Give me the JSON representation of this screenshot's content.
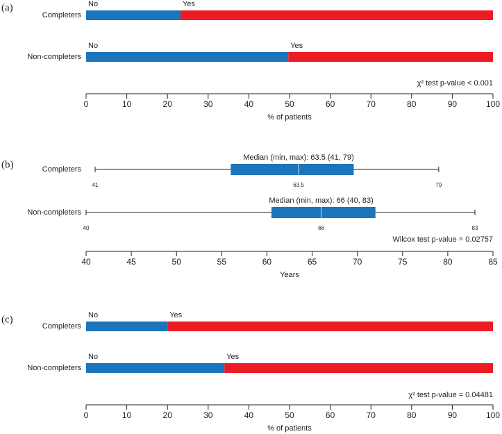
{
  "chart_data": [
    {
      "type": "stacked_barh",
      "panel_label": "(a)",
      "categories": [
        "Completers",
        "Non-completers"
      ],
      "series": [
        {
          "name": "No",
          "color": "#1b75bc",
          "values": [
            23.2,
            49.7
          ]
        },
        {
          "name": "Yes",
          "color": "#ed1c24",
          "values": [
            76.8,
            50.3
          ]
        }
      ],
      "xlabel": "% of patients",
      "xlim": [
        0,
        100
      ],
      "xticks": [
        0,
        10,
        20,
        30,
        40,
        50,
        60,
        70,
        80,
        90,
        100
      ],
      "annotation": "χ² test p-value < 0.001"
    },
    {
      "type": "boxplot",
      "panel_label": "(b)",
      "categories": [
        "Completers",
        "Non-completers"
      ],
      "color": "#1b75bc",
      "min": [
        41,
        40
      ],
      "q1": [
        56,
        60.5
      ],
      "median": [
        63.5,
        66
      ],
      "q3": [
        69.6,
        72
      ],
      "max": [
        79,
        83
      ],
      "median_labels": [
        "Median (min, max): 63.5 (41, 79)",
        "Median (min, max): 66 (40, 83)"
      ],
      "xlabel": "Years",
      "xlim": [
        40,
        85
      ],
      "xticks": [
        40,
        45,
        50,
        55,
        60,
        65,
        70,
        75,
        80,
        85
      ],
      "annotation": "Wilcox test p-value = 0.02757"
    },
    {
      "type": "stacked_barh",
      "panel_label": "(c)",
      "categories": [
        "Completers",
        "Non-completers"
      ],
      "series": [
        {
          "name": "No",
          "color": "#1b75bc",
          "values": [
            20,
            34
          ]
        },
        {
          "name": "Yes",
          "color": "#ed1c24",
          "values": [
            80,
            66
          ]
        }
      ],
      "xlabel": "% of patients",
      "xlim": [
        0,
        100
      ],
      "xticks": [
        0,
        10,
        20,
        30,
        40,
        50,
        60,
        70,
        80,
        90,
        100
      ],
      "annotation": "χ² test p-value = 0.04481"
    }
  ]
}
